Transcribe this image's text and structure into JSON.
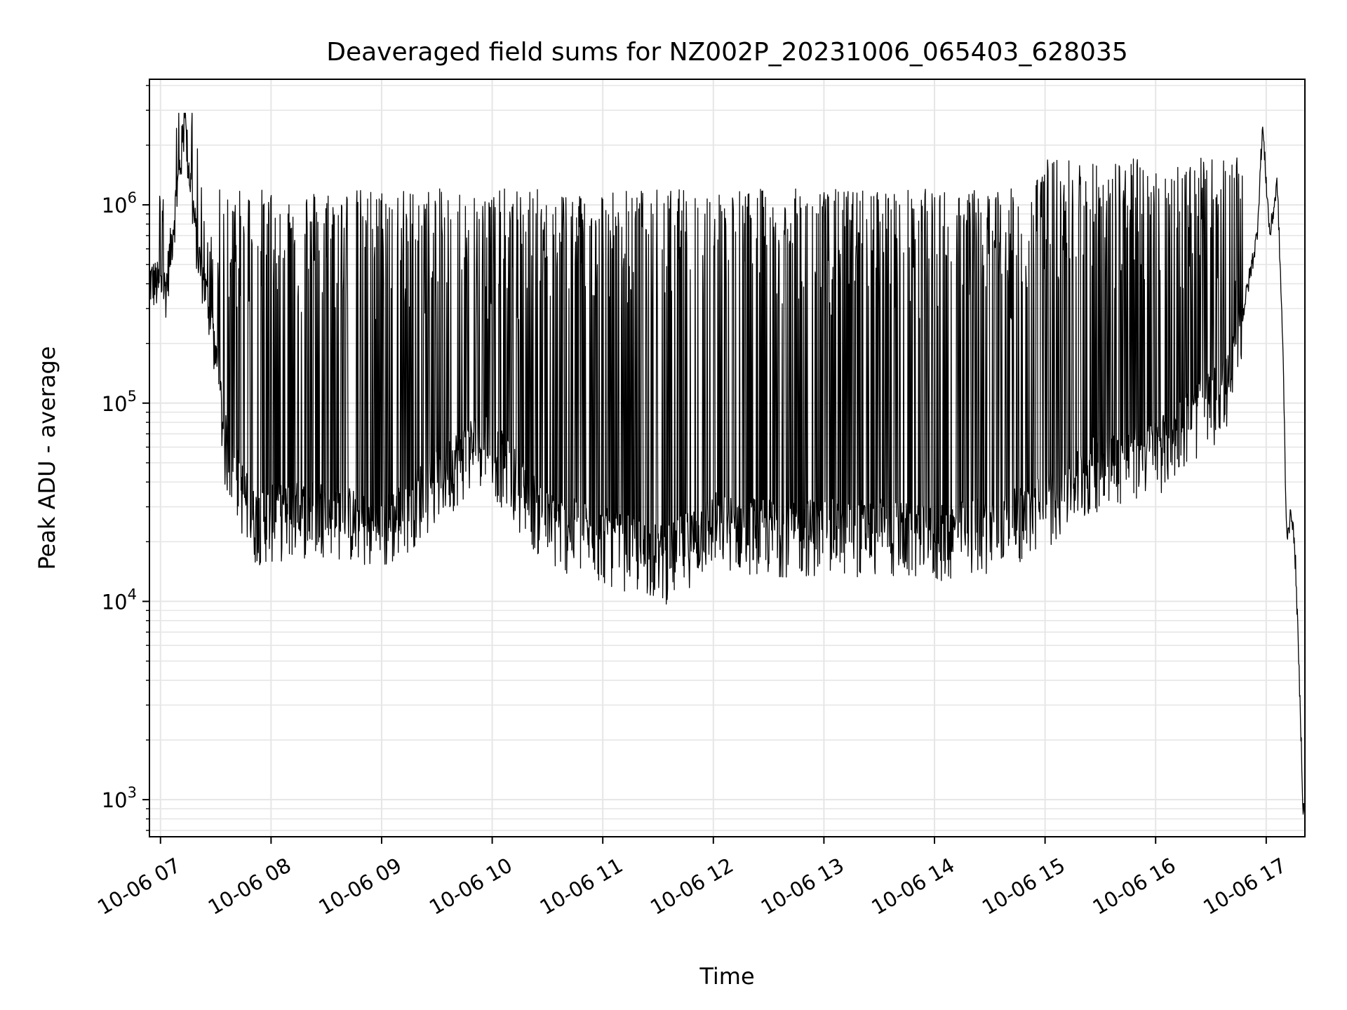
{
  "chart_data": {
    "type": "line",
    "title": "Deaveraged field sums for NZ002P_20231006_065403_628035",
    "xlabel": "Time",
    "ylabel": "Peak ADU - average",
    "yscale": "log",
    "ylim": [
      650,
      4300000
    ],
    "xlim": [
      "2023-10-06 06:54",
      "2023-10-06 17:21"
    ],
    "grid": true,
    "line_color": "#000000",
    "grid_color": "#e6e6e6",
    "x_ticks": [
      {
        "value": "2023-10-06 07:00",
        "label": "10-06 07"
      },
      {
        "value": "2023-10-06 08:00",
        "label": "10-06 08"
      },
      {
        "value": "2023-10-06 09:00",
        "label": "10-06 09"
      },
      {
        "value": "2023-10-06 10:00",
        "label": "10-06 10"
      },
      {
        "value": "2023-10-06 11:00",
        "label": "10-06 11"
      },
      {
        "value": "2023-10-06 12:00",
        "label": "10-06 12"
      },
      {
        "value": "2023-10-06 13:00",
        "label": "10-06 13"
      },
      {
        "value": "2023-10-06 14:00",
        "label": "10-06 14"
      },
      {
        "value": "2023-10-06 15:00",
        "label": "10-06 15"
      },
      {
        "value": "2023-10-06 16:00",
        "label": "10-06 16"
      },
      {
        "value": "2023-10-06 17:00",
        "label": "10-06 17"
      }
    ],
    "y_ticks": [
      {
        "value": 1000,
        "base": "10",
        "exp": "3"
      },
      {
        "value": 10000,
        "base": "10",
        "exp": "4"
      },
      {
        "value": 100000,
        "base": "10",
        "exp": "5"
      },
      {
        "value": 1000000,
        "base": "10",
        "exp": "6"
      }
    ],
    "series": [
      {
        "color": "#000000",
        "description_points": [
          [
            "2023-10-06 06:54",
            420000
          ],
          [
            "2023-10-06 07:03",
            380000
          ],
          [
            "2023-10-06 07:10",
            1400000
          ],
          [
            "2023-10-06 07:13",
            2600000
          ],
          [
            "2023-10-06 07:20",
            600000
          ],
          [
            "2023-10-06 07:28",
            250000
          ],
          [
            "2023-10-06 07:35",
            60000
          ],
          [
            "2023-10-06 07:50",
            25000
          ],
          [
            "2023-10-06 08:30",
            28000
          ],
          [
            "2023-10-06 09:00",
            22000
          ],
          [
            "2023-10-06 09:30",
            40000
          ],
          [
            "2023-10-06 09:55",
            65000
          ],
          [
            "2023-10-06 10:30",
            24000
          ],
          [
            "2023-10-06 11:00",
            20000
          ],
          [
            "2023-10-06 11:35",
            16000
          ],
          [
            "2023-10-06 12:00",
            24000
          ],
          [
            "2023-10-06 12:30",
            22000
          ],
          [
            "2023-10-06 13:00",
            22000
          ],
          [
            "2023-10-06 13:30",
            22000
          ],
          [
            "2023-10-06 14:00",
            20000
          ],
          [
            "2023-10-06 14:45",
            25000
          ],
          [
            "2023-10-06 15:00",
            30000
          ],
          [
            "2023-10-06 15:30",
            48000
          ],
          [
            "2023-10-06 16:00",
            55000
          ],
          [
            "2023-10-06 16:40",
            120000
          ],
          [
            "2023-10-06 16:55",
            700000
          ],
          [
            "2023-10-06 16:58",
            2500000
          ],
          [
            "2023-10-06 17:02",
            700000
          ],
          [
            "2023-10-06 17:06",
            1300000
          ],
          [
            "2023-10-06 17:09",
            200000
          ],
          [
            "2023-10-06 17:11",
            22000
          ],
          [
            "2023-10-06 17:14",
            28000
          ],
          [
            "2023-10-06 17:16",
            15000
          ],
          [
            "2023-10-06 17:19",
            2000
          ],
          [
            "2023-10-06 17:20",
            900
          ]
        ]
      }
    ]
  }
}
